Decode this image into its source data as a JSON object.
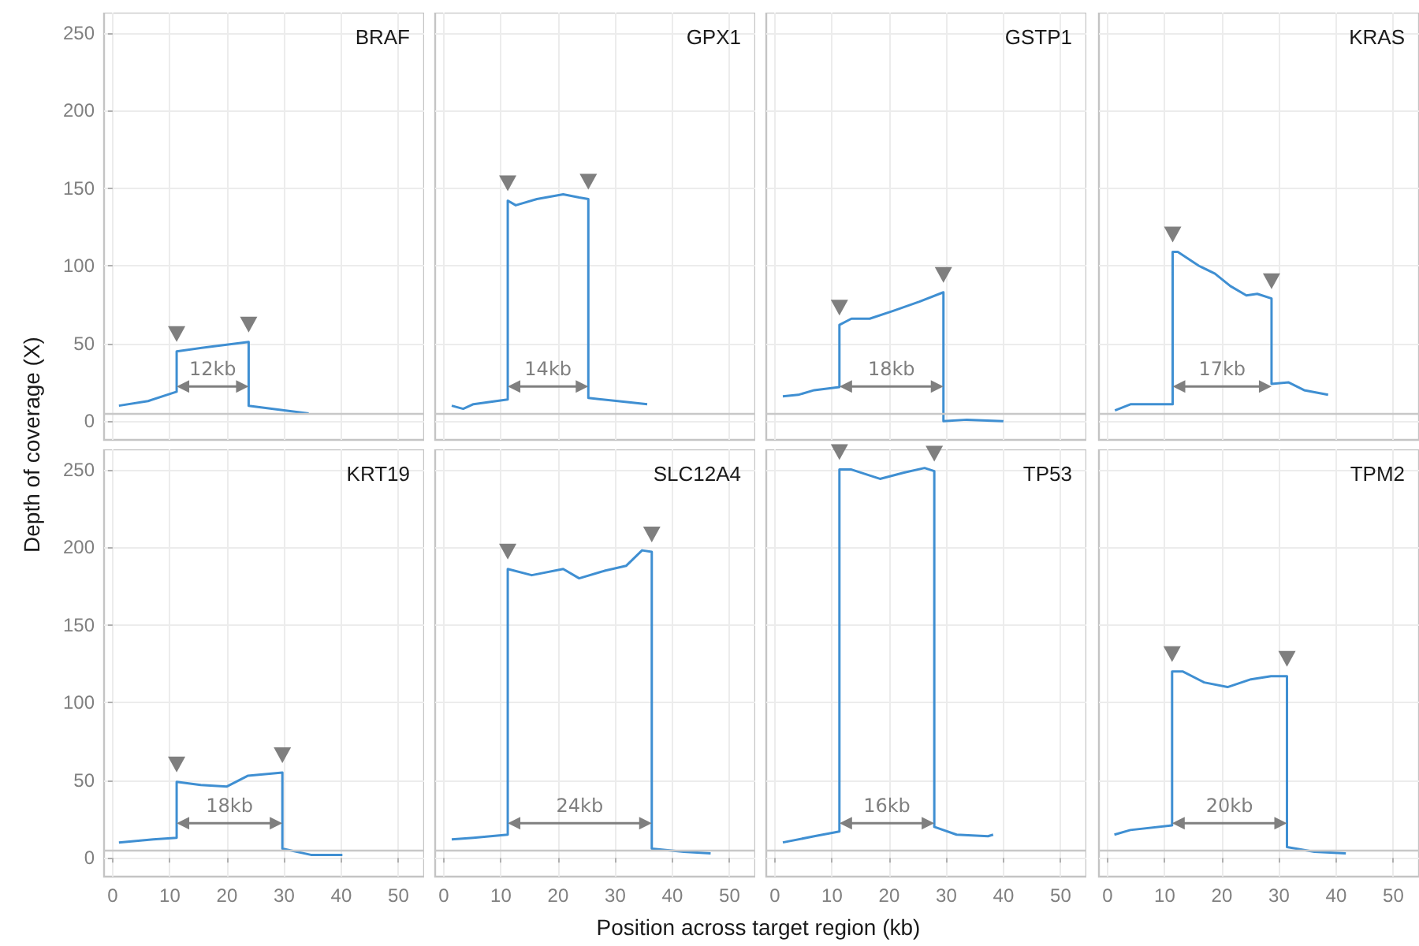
{
  "chart_data": [
    {
      "type": "line",
      "title": "BRAF",
      "ylabel": "Depth of coverage (X)",
      "color": "#3f8fd2",
      "marker": "none",
      "grid": true,
      "tick_labels": "y",
      "xlim": [
        -1.5,
        54.5
      ],
      "ylim": [
        -12,
        263
      ],
      "xticks": [
        0,
        10,
        20,
        30,
        40,
        50
      ],
      "yticks": [
        0,
        50,
        100,
        150,
        200,
        250
      ],
      "ref_lines": [
        {
          "axis": "y",
          "value": 5,
          "color": "#c8c8c8"
        }
      ],
      "annotations": [
        "12kb"
      ],
      "x": [
        1.1,
        6.2,
        11.2,
        11.2,
        17.2,
        23.8,
        23.8,
        34.3
      ],
      "values": [
        10,
        13,
        19,
        45,
        48,
        51,
        10,
        5
      ]
    },
    {
      "type": "line",
      "title": "GPX1",
      "color": "#3f8fd2",
      "marker": "none",
      "grid": true,
      "tick_labels": false,
      "xlim": [
        -1.5,
        54.5
      ],
      "ylim": [
        -12,
        263
      ],
      "xticks": [
        0,
        10,
        20,
        30,
        40,
        50
      ],
      "yticks": [
        0,
        50,
        100,
        150,
        200,
        250
      ],
      "ref_lines": [
        {
          "axis": "y",
          "value": 5,
          "color": "#c8c8c8"
        }
      ],
      "annotations": [
        "14kb"
      ],
      "x": [
        1.4,
        3.4,
        5.2,
        11.2,
        11.2,
        12.6,
        16.3,
        20.9,
        23.7,
        25.3,
        25.3,
        35.6
      ],
      "values": [
        10,
        8,
        11,
        14,
        142,
        139,
        143,
        146,
        144,
        143,
        15,
        11
      ]
    },
    {
      "type": "line",
      "title": "GSTP1",
      "color": "#3f8fd2",
      "marker": "none",
      "grid": true,
      "tick_labels": false,
      "xlim": [
        -1.5,
        54.5
      ],
      "ylim": [
        -12,
        263
      ],
      "xticks": [
        0,
        10,
        20,
        30,
        40,
        50
      ],
      "yticks": [
        0,
        50,
        100,
        150,
        200,
        250
      ],
      "ref_lines": [
        {
          "axis": "y",
          "value": 5,
          "color": "#c8c8c8"
        }
      ],
      "annotations": [
        "18kb"
      ],
      "x": [
        1.4,
        4.1,
        6.9,
        11.3,
        11.3,
        13.4,
        16.6,
        20.7,
        25.3,
        29.5,
        29.5,
        33.6,
        40
      ],
      "values": [
        16,
        17,
        20,
        22,
        62,
        66,
        66,
        71,
        77,
        83,
        0,
        1,
        0
      ]
    },
    {
      "type": "line",
      "title": "KRAS",
      "color": "#3f8fd2",
      "marker": "none",
      "grid": true,
      "tick_labels": false,
      "xlim": [
        -1.5,
        54.5
      ],
      "ylim": [
        -12,
        263
      ],
      "xticks": [
        0,
        10,
        20,
        30,
        40,
        50
      ],
      "yticks": [
        0,
        50,
        100,
        150,
        200,
        250
      ],
      "ref_lines": [
        {
          "axis": "y",
          "value": 5,
          "color": "#c8c8c8"
        }
      ],
      "annotations": [
        "17kb"
      ],
      "x": [
        1.3,
        4.1,
        11.4,
        11.4,
        12.3,
        16,
        18.8,
        21.5,
        24.3,
        26.2,
        28.7,
        28.7,
        31.7,
        34.4,
        38.6
      ],
      "values": [
        7,
        11,
        11,
        109,
        109,
        100,
        95,
        87,
        81,
        82,
        79,
        24,
        25,
        20,
        17
      ]
    },
    {
      "type": "line",
      "title": "KRT19",
      "color": "#3f8fd2",
      "marker": "none",
      "grid": true,
      "xlim": [
        -1.5,
        54.5
      ],
      "ylim": [
        -12,
        263
      ],
      "xticks": [
        0,
        10,
        20,
        30,
        40,
        50
      ],
      "yticks": [
        0,
        50,
        100,
        150,
        200,
        250
      ],
      "ref_lines": [
        {
          "axis": "y",
          "value": 5,
          "color": "#c8c8c8"
        }
      ],
      "annotations": [
        "18kb"
      ],
      "x": [
        1.1,
        7.1,
        11.2,
        11.2,
        15.4,
        20,
        23.7,
        29.7,
        29.7,
        34.7,
        40.2
      ],
      "values": [
        10,
        12,
        13,
        49,
        47,
        46,
        53,
        55,
        6,
        2,
        2
      ]
    },
    {
      "type": "line",
      "title": "SLC12A4",
      "xlabel": "Position across target region (kb)",
      "color": "#3f8fd2",
      "marker": "none",
      "grid": true,
      "tick_labels": "x",
      "xlim": [
        -1.5,
        54.5
      ],
      "ylim": [
        -12,
        263
      ],
      "xticks": [
        0,
        10,
        20,
        30,
        40,
        50
      ],
      "yticks": [
        0,
        50,
        100,
        150,
        200,
        250
      ],
      "ref_lines": [
        {
          "axis": "y",
          "value": 5,
          "color": "#c8c8c8"
        }
      ],
      "annotations": [
        "24kb"
      ],
      "x": [
        1.4,
        5.2,
        11.2,
        11.2,
        15.4,
        20.9,
        23.7,
        28.3,
        31.9,
        34.7,
        36.4,
        36.4,
        42,
        46.7
      ],
      "values": [
        12,
        13,
        15,
        186,
        182,
        186,
        180,
        185,
        188,
        198,
        197,
        6,
        4,
        3
      ]
    },
    {
      "type": "line",
      "title": "TP53",
      "color": "#3f8fd2",
      "marker": "none",
      "grid": true,
      "tick_labels": "x",
      "xlim": [
        -1.5,
        54.5
      ],
      "ylim": [
        -12,
        263
      ],
      "xticks": [
        0,
        10,
        20,
        30,
        40,
        50
      ],
      "yticks": [
        0,
        50,
        100,
        150,
        200,
        250
      ],
      "ref_lines": [
        {
          "axis": "y",
          "value": 5,
          "color": "#c8c8c8"
        }
      ],
      "annotations": [
        "16kb"
      ],
      "x": [
        1.4,
        6.9,
        11.3,
        11.3,
        13.4,
        18.4,
        22.6,
        26.2,
        27.9,
        27.9,
        31.8,
        37.3,
        38.2
      ],
      "values": [
        10,
        14,
        17,
        250,
        250,
        244,
        248,
        251,
        249,
        20,
        15,
        14,
        15
      ]
    },
    {
      "type": "line",
      "title": "TPM2",
      "color": "#3f8fd2",
      "marker": "none",
      "grid": true,
      "tick_labels": "x",
      "xlim": [
        -1.5,
        54.5
      ],
      "ylim": [
        -12,
        263
      ],
      "xticks": [
        0,
        10,
        20,
        30,
        40,
        50
      ],
      "yticks": [
        0,
        50,
        100,
        150,
        200,
        250
      ],
      "ref_lines": [
        {
          "axis": "y",
          "value": 5,
          "color": "#c8c8c8"
        }
      ],
      "annotations": [
        "20kb"
      ],
      "x": [
        1.2,
        4,
        11.3,
        11.3,
        13.2,
        16.9,
        21,
        25.1,
        28.6,
        31.4,
        31.4,
        36.2,
        41.7
      ],
      "values": [
        15,
        18,
        21,
        120,
        120,
        113,
        110,
        115,
        117,
        117,
        7,
        4,
        3
      ]
    }
  ]
}
